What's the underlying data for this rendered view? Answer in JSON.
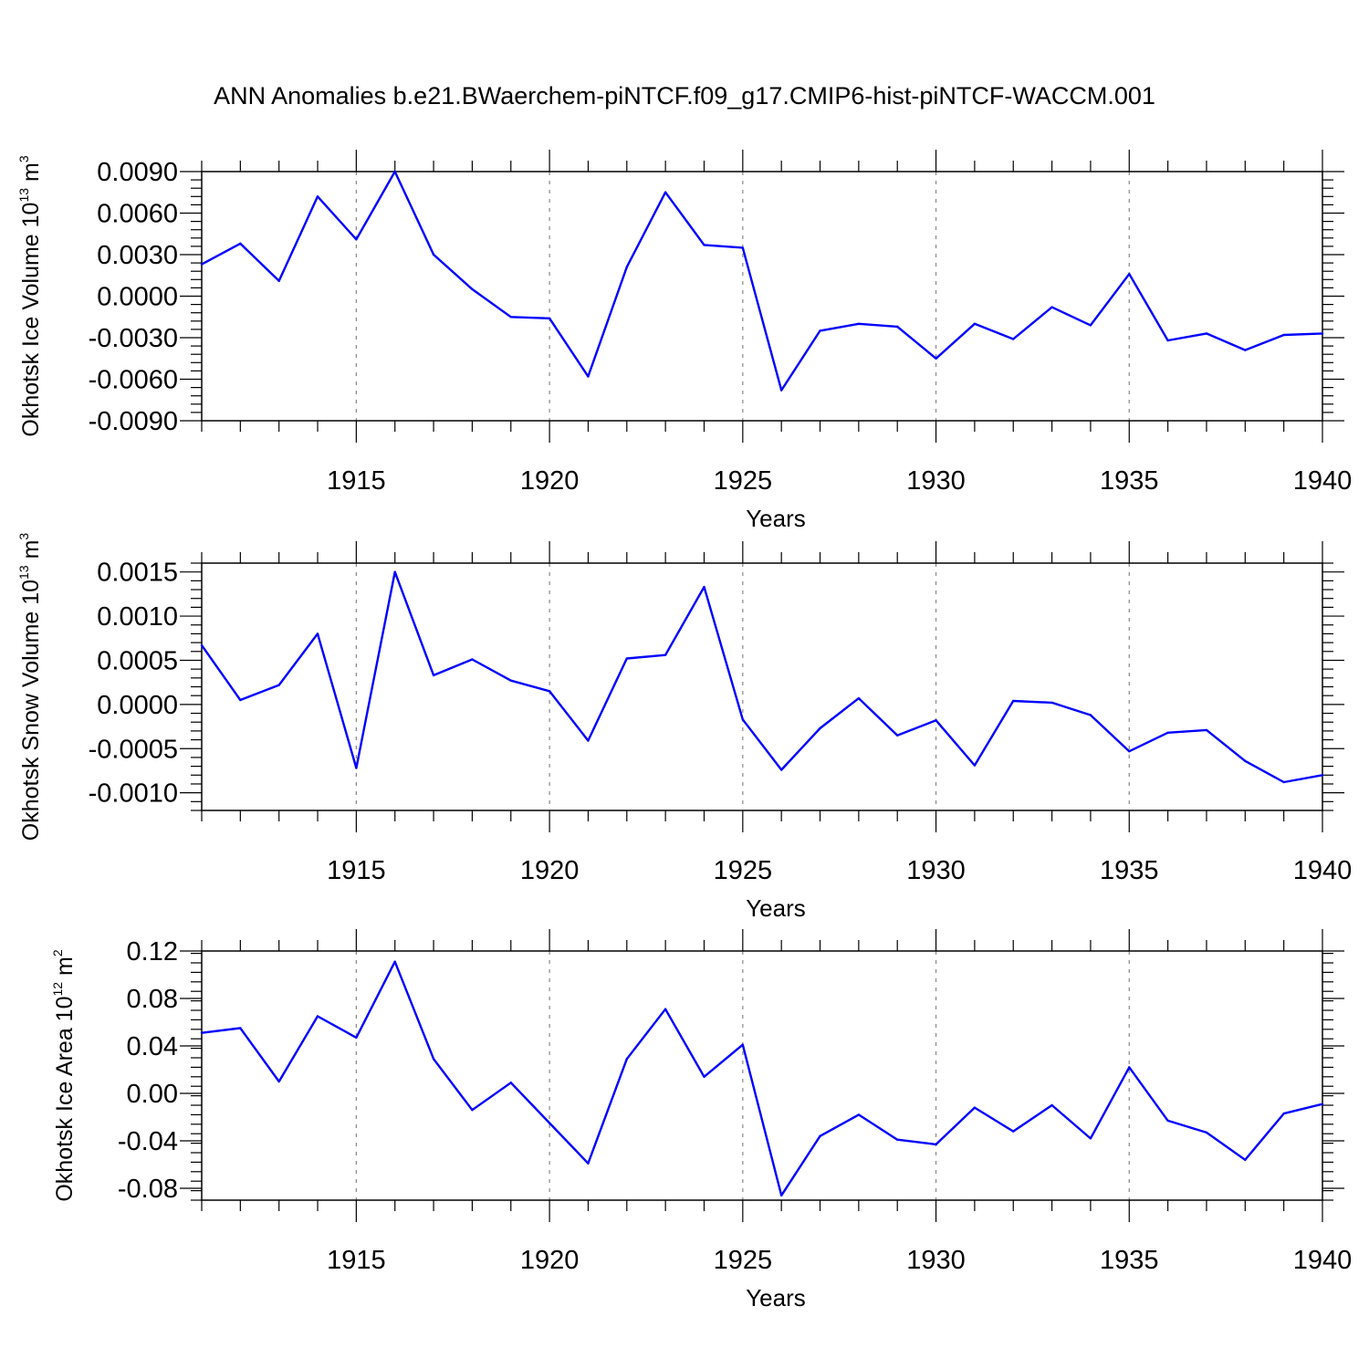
{
  "figure_title": "ANN Anomalies b.e21.BWaerchem-piNTCF.f09_g17.CMIP6-hist-piNTCF-WACCM.001",
  "colors": {
    "line": "#0000ff",
    "axis": "#000000",
    "grid": "#888888"
  },
  "chart_data": [
    {
      "type": "line",
      "title": "",
      "ylabel_text": "Okhotsk Ice Volume 10",
      "ylabel_exp": "13",
      "ylabel_unit": " m",
      "ylabel_unit_exp": "3",
      "xlabel": "Years",
      "xlim": [
        1911,
        1940
      ],
      "ylim": [
        -0.009,
        0.009
      ],
      "xticks": [
        1915,
        1920,
        1925,
        1930,
        1935,
        1940
      ],
      "yticks": [
        -0.009,
        -0.006,
        -0.003,
        0.0,
        0.003,
        0.006,
        0.009
      ],
      "yticklabels": [
        "-0.0090",
        "-0.0060",
        "-0.0030",
        "0.0000",
        "0.0030",
        "0.0060",
        "0.0090"
      ],
      "grid": "vertical dashed at major x ticks",
      "x": [
        1911,
        1912,
        1913,
        1914,
        1915,
        1916,
        1917,
        1918,
        1919,
        1920,
        1921,
        1922,
        1923,
        1924,
        1925,
        1926,
        1927,
        1928,
        1929,
        1930,
        1931,
        1932,
        1933,
        1934,
        1935,
        1936,
        1937,
        1938,
        1939,
        1940
      ],
      "values": [
        0.0023,
        0.0038,
        0.0011,
        0.0072,
        0.0041,
        0.009,
        0.003,
        0.0005,
        -0.0015,
        -0.0016,
        -0.0058,
        0.0021,
        0.0075,
        0.0037,
        0.0035,
        -0.0068,
        -0.0025,
        -0.002,
        -0.0022,
        -0.0045,
        -0.002,
        -0.0031,
        -0.0008,
        -0.0021,
        0.0016,
        -0.0032,
        -0.0027,
        -0.0039,
        -0.0028,
        -0.0027
      ]
    },
    {
      "type": "line",
      "title": "",
      "ylabel_text": "Okhotsk Snow Volume 10",
      "ylabel_exp": "13",
      "ylabel_unit": " m",
      "ylabel_unit_exp": "3",
      "xlabel": "Years",
      "xlim": [
        1911,
        1940
      ],
      "ylim": [
        -0.0012,
        0.0016
      ],
      "xticks": [
        1915,
        1920,
        1925,
        1930,
        1935,
        1940
      ],
      "yticks": [
        -0.001,
        -0.0005,
        0.0,
        0.0005,
        0.001,
        0.0015
      ],
      "yticklabels": [
        "-0.0010",
        "-0.0005",
        "0.0000",
        "0.0005",
        "0.0010",
        "0.0015"
      ],
      "grid": "vertical dashed at major x ticks",
      "x": [
        1911,
        1912,
        1913,
        1914,
        1915,
        1916,
        1917,
        1918,
        1919,
        1920,
        1921,
        1922,
        1923,
        1924,
        1925,
        1926,
        1927,
        1928,
        1929,
        1930,
        1931,
        1932,
        1933,
        1934,
        1935,
        1936,
        1937,
        1938,
        1939,
        1940
      ],
      "values": [
        0.00067,
        5e-05,
        0.00022,
        0.0008,
        -0.00072,
        0.0015,
        0.00033,
        0.00051,
        0.00027,
        0.00015,
        -0.00041,
        0.00052,
        0.00056,
        0.00133,
        -0.00017,
        -0.00074,
        -0.00027,
        7e-05,
        -0.00035,
        -0.00018,
        -0.00069,
        4e-05,
        2e-05,
        -0.00012,
        -0.00053,
        -0.00032,
        -0.00029,
        -0.00064,
        -0.00088,
        -0.0008
      ]
    },
    {
      "type": "line",
      "title": "",
      "ylabel_text": "Okhotsk Ice Area 10",
      "ylabel_exp": "12",
      "ylabel_unit": " m",
      "ylabel_unit_exp": "2",
      "xlabel": "Years",
      "xlim": [
        1911,
        1940
      ],
      "ylim": [
        -0.09,
        0.12
      ],
      "xticks": [
        1915,
        1920,
        1925,
        1930,
        1935,
        1940
      ],
      "yticks": [
        -0.08,
        -0.04,
        0.0,
        0.04,
        0.08,
        0.12
      ],
      "yticklabels": [
        "-0.08",
        "-0.04",
        "0.00",
        "0.04",
        "0.08",
        "0.12"
      ],
      "grid": "vertical dashed at major x ticks",
      "x": [
        1911,
        1912,
        1913,
        1914,
        1915,
        1916,
        1917,
        1918,
        1919,
        1920,
        1921,
        1922,
        1923,
        1924,
        1925,
        1926,
        1927,
        1928,
        1929,
        1930,
        1931,
        1932,
        1933,
        1934,
        1935,
        1936,
        1937,
        1938,
        1939,
        1940
      ],
      "values": [
        0.051,
        0.055,
        0.01,
        0.065,
        0.047,
        0.111,
        0.029,
        -0.014,
        0.009,
        -0.025,
        -0.059,
        0.029,
        0.071,
        0.014,
        0.041,
        -0.086,
        -0.036,
        -0.018,
        -0.039,
        -0.043,
        -0.012,
        -0.032,
        -0.01,
        -0.038,
        0.022,
        -0.023,
        -0.033,
        -0.056,
        -0.017,
        -0.009
      ]
    }
  ]
}
